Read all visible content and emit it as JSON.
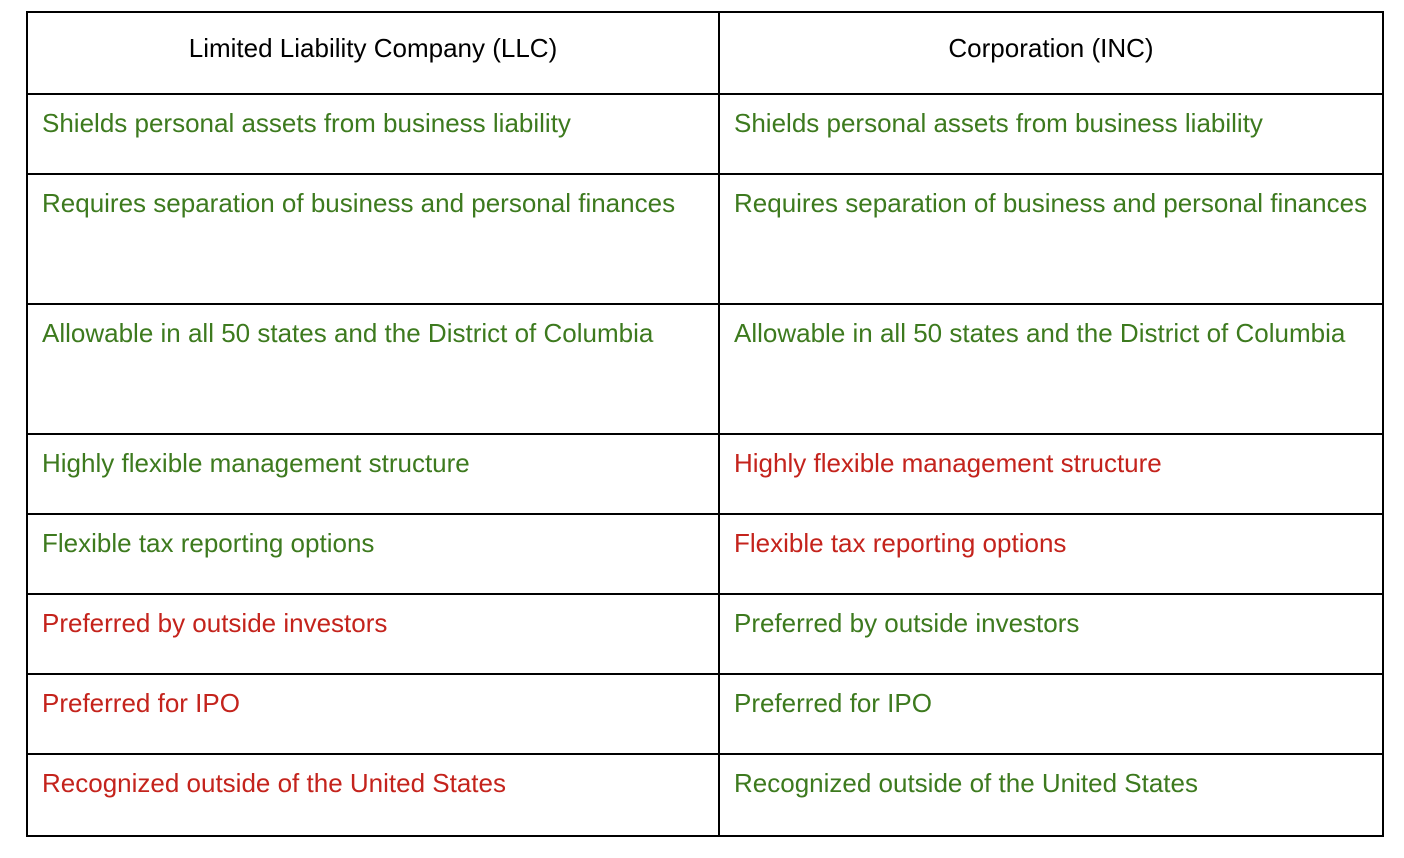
{
  "header": {
    "llc": "Limited Liability Company (LLC)",
    "inc": "Corporation (INC)"
  },
  "colors": {
    "advantage": "#3d7a1e",
    "disadvantage": "#c4231c"
  },
  "rows": [
    {
      "llc": "Shields personal assets from business liability",
      "inc": "Shields personal assets from business liability",
      "llc_status": "advantage",
      "inc_status": "advantage"
    },
    {
      "llc": "Requires separation of business and personal finances",
      "inc": "Requires separation of business and personal finances",
      "llc_status": "advantage",
      "inc_status": "advantage"
    },
    {
      "llc": "Allowable in all 50 states and the District of Columbia",
      "inc": "Allowable in all 50 states and the District of Columbia",
      "llc_status": "advantage",
      "inc_status": "advantage"
    },
    {
      "llc": "Highly flexible management structure",
      "inc": "Highly flexible management structure",
      "llc_status": "advantage",
      "inc_status": "disadvantage"
    },
    {
      "llc": "Flexible tax reporting options",
      "inc": "Flexible tax reporting options",
      "llc_status": "advantage",
      "inc_status": "disadvantage"
    },
    {
      "llc": "Preferred by outside investors",
      "inc": "Preferred by outside investors",
      "llc_status": "disadvantage",
      "inc_status": "advantage"
    },
    {
      "llc": "Preferred for IPO",
      "inc": "Preferred for IPO",
      "llc_status": "disadvantage",
      "inc_status": "advantage"
    },
    {
      "llc": "Recognized outside of the United States",
      "inc": "Recognized outside of the United States",
      "llc_status": "disadvantage",
      "inc_status": "advantage"
    }
  ]
}
